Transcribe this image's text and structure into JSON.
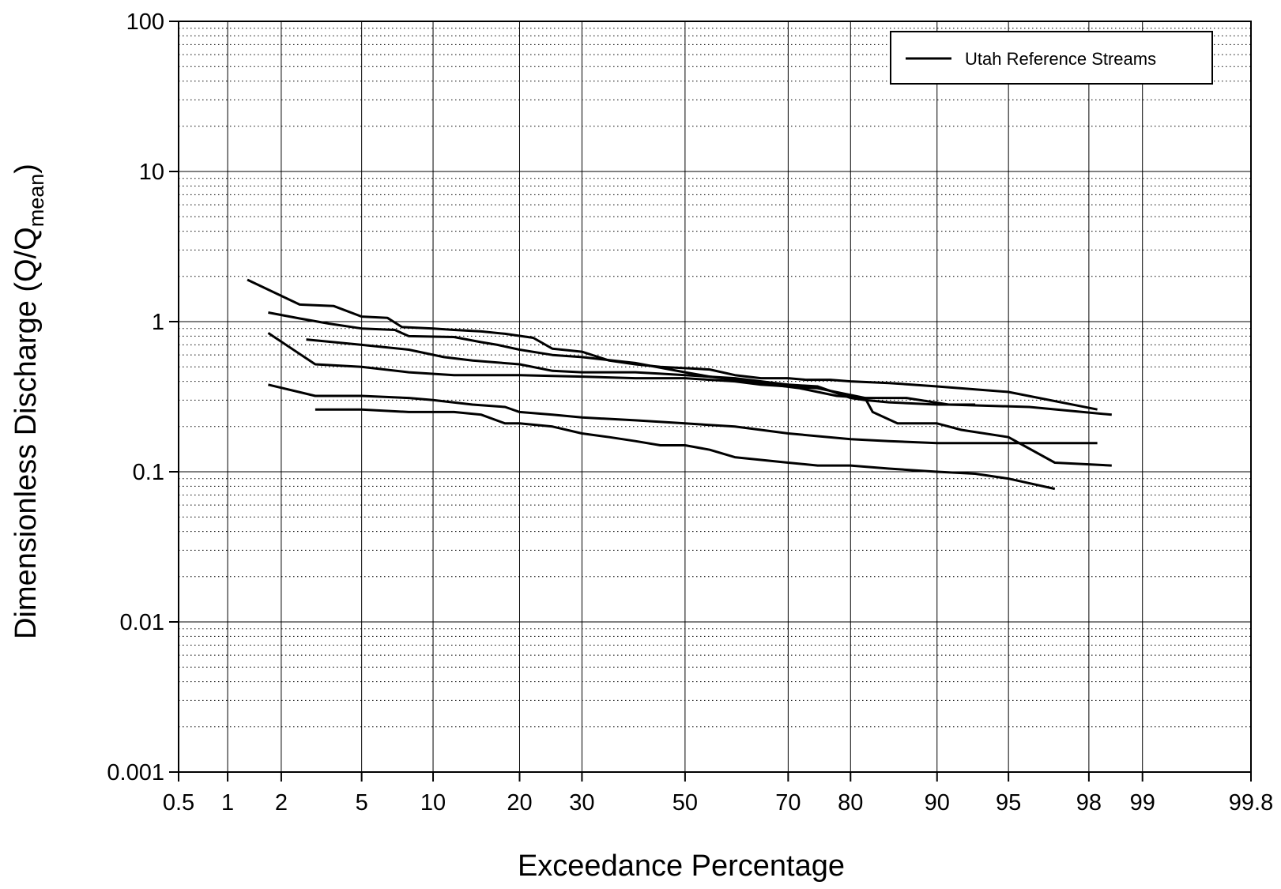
{
  "chart_data": {
    "type": "line",
    "xlabel": "Exceedance Percentage",
    "ylabel": {
      "main": "Dimensionless Discharge (Q/Q",
      "sub": "mean",
      "close": ")"
    },
    "x_scale": "probability",
    "y_scale": "log",
    "xlim": [
      0.5,
      99.8
    ],
    "ylim": [
      0.001,
      100
    ],
    "x_ticks": [
      0.5,
      1,
      2,
      5,
      10,
      20,
      30,
      50,
      70,
      80,
      90,
      95,
      98,
      99,
      99.8
    ],
    "x_tick_labels": [
      "0.5",
      "1",
      "2",
      "5",
      "10",
      "20",
      "30",
      "50",
      "70",
      "80",
      "90",
      "95",
      "98",
      "99",
      "99.8"
    ],
    "y_ticks": [
      0.001,
      0.01,
      0.1,
      1,
      10,
      100
    ],
    "y_tick_labels": [
      "0.001",
      "0.01",
      "0.1",
      "1",
      "10",
      "100"
    ],
    "grid": "major solid, minor dotted",
    "legend": {
      "entries": [
        "Utah Reference Streams"
      ],
      "position": "top-right"
    },
    "series_style": {
      "color": "#000000"
    },
    "series": [
      {
        "x": [
          1.3,
          2.5,
          3.7,
          5,
          6.5,
          7.5,
          10,
          12,
          15,
          18,
          22,
          25,
          30,
          35,
          40,
          45,
          50,
          55,
          60,
          65,
          70,
          73,
          77,
          80,
          85,
          90,
          95,
          98.2
        ],
        "y": [
          1.9,
          1.3,
          1.27,
          1.08,
          1.06,
          0.92,
          0.9,
          0.88,
          0.86,
          0.83,
          0.78,
          0.66,
          0.63,
          0.55,
          0.52,
          0.5,
          0.49,
          0.48,
          0.44,
          0.42,
          0.42,
          0.41,
          0.41,
          0.4,
          0.39,
          0.37,
          0.34,
          0.26
        ]
      },
      {
        "x": [
          1.7,
          2.5,
          3.5,
          5,
          7,
          8,
          12,
          15,
          17,
          20,
          25,
          30,
          40,
          50,
          55,
          60,
          67,
          72,
          75,
          78,
          82,
          87,
          91,
          96,
          98.5
        ],
        "y": [
          1.15,
          1.05,
          0.97,
          0.9,
          0.88,
          0.8,
          0.79,
          0.73,
          0.7,
          0.65,
          0.6,
          0.58,
          0.53,
          0.46,
          0.43,
          0.41,
          0.38,
          0.36,
          0.34,
          0.32,
          0.31,
          0.31,
          0.28,
          0.27,
          0.24
        ]
      },
      {
        "x": [
          2.7,
          5,
          8,
          11,
          14,
          20,
          25,
          30,
          35,
          40,
          45,
          50,
          60,
          70,
          75,
          80,
          82,
          85,
          90,
          93
        ],
        "y": [
          0.76,
          0.7,
          0.65,
          0.58,
          0.55,
          0.52,
          0.47,
          0.46,
          0.46,
          0.46,
          0.45,
          0.44,
          0.42,
          0.38,
          0.37,
          0.31,
          0.3,
          0.29,
          0.28,
          0.28
        ]
      },
      {
        "x": [
          1.7,
          3,
          5,
          8,
          12,
          20,
          30,
          40,
          50,
          55,
          60,
          65,
          70,
          75,
          82,
          83,
          86,
          88,
          90,
          92,
          95,
          97,
          98.5
        ],
        "y": [
          0.84,
          0.52,
          0.5,
          0.46,
          0.44,
          0.44,
          0.43,
          0.42,
          0.42,
          0.41,
          0.4,
          0.38,
          0.37,
          0.36,
          0.31,
          0.25,
          0.21,
          0.21,
          0.21,
          0.19,
          0.17,
          0.115,
          0.11
        ]
      },
      {
        "x": [
          1.7,
          3,
          5,
          8,
          10,
          14,
          18,
          20,
          25,
          30,
          40,
          50,
          60,
          65,
          70,
          80,
          85,
          90,
          95,
          98.2
        ],
        "y": [
          0.38,
          0.32,
          0.32,
          0.31,
          0.3,
          0.28,
          0.27,
          0.25,
          0.24,
          0.23,
          0.22,
          0.21,
          0.2,
          0.19,
          0.18,
          0.165,
          0.16,
          0.155,
          0.155,
          0.155
        ]
      },
      {
        "x": [
          3,
          5,
          8,
          10,
          12,
          15,
          18,
          20,
          25,
          30,
          35,
          40,
          45,
          50,
          55,
          60,
          70,
          75,
          80,
          85,
          90,
          93,
          95,
          97
        ],
        "y": [
          0.26,
          0.26,
          0.25,
          0.25,
          0.25,
          0.24,
          0.21,
          0.21,
          0.2,
          0.18,
          0.17,
          0.16,
          0.15,
          0.15,
          0.14,
          0.125,
          0.115,
          0.11,
          0.11,
          0.105,
          0.1,
          0.097,
          0.09,
          0.077
        ]
      }
    ]
  }
}
